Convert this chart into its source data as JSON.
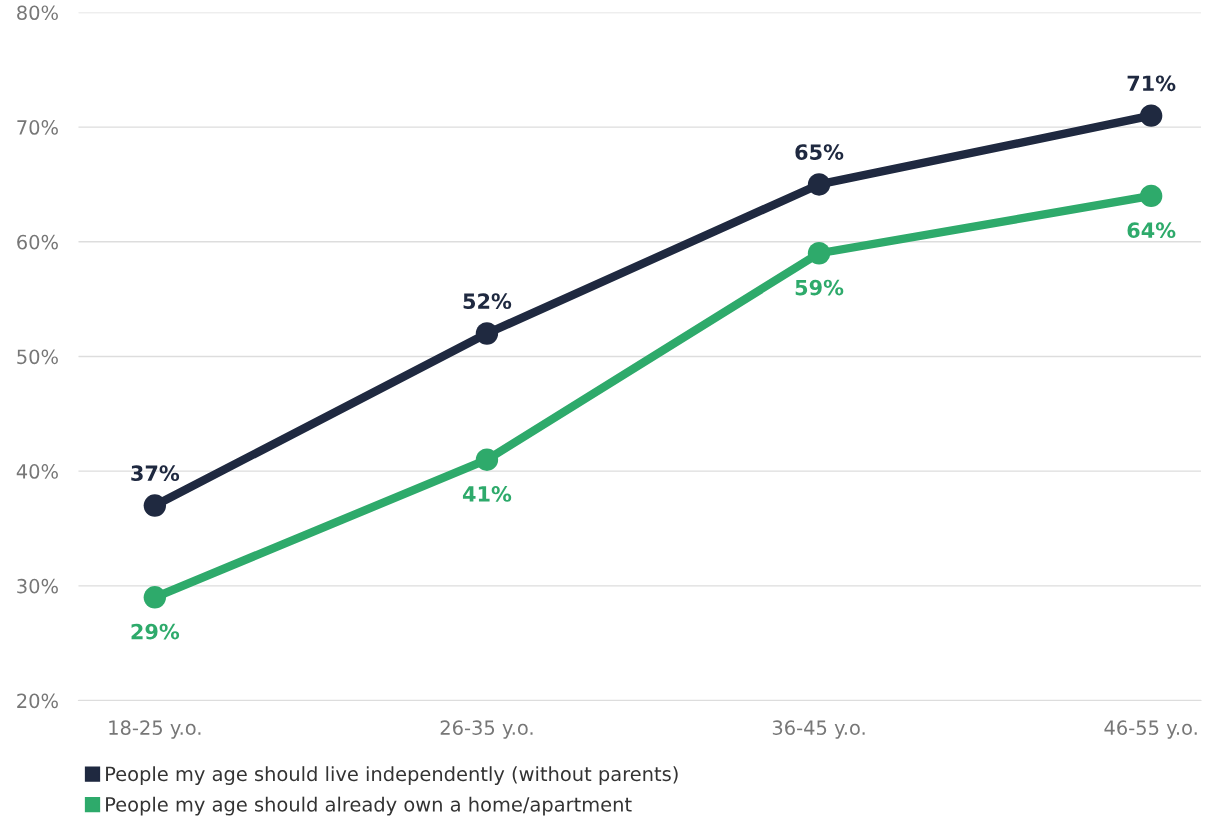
{
  "chart_data": {
    "type": "line",
    "categories": [
      "18-25 y.o.",
      "26-35 y.o.",
      "36-45 y.o.",
      "46-55 y.o."
    ],
    "series": [
      {
        "name": "People my age should live independently (without parents)",
        "color": "#1f2940",
        "values": [
          37,
          52,
          65,
          71
        ],
        "value_labels": [
          "37%",
          "52%",
          "65%",
          "71%"
        ]
      },
      {
        "name": "People my age should already own a home/apartment",
        "color": "#2eaa6b",
        "values": [
          29,
          41,
          59,
          64
        ],
        "value_labels": [
          "29%",
          "41%",
          "59%",
          "64%"
        ]
      }
    ],
    "ylim": [
      20,
      80
    ],
    "yticks": [
      {
        "value": 20,
        "label": "20%"
      },
      {
        "value": 30,
        "label": "30%"
      },
      {
        "value": 40,
        "label": "40%"
      },
      {
        "value": 50,
        "label": "50%"
      },
      {
        "value": 60,
        "label": "60%"
      },
      {
        "value": 70,
        "label": "70%"
      },
      {
        "value": 80,
        "label": "80%"
      }
    ],
    "grid": "y",
    "legend": "bottom",
    "marker": "circle",
    "line_style": "solid"
  }
}
